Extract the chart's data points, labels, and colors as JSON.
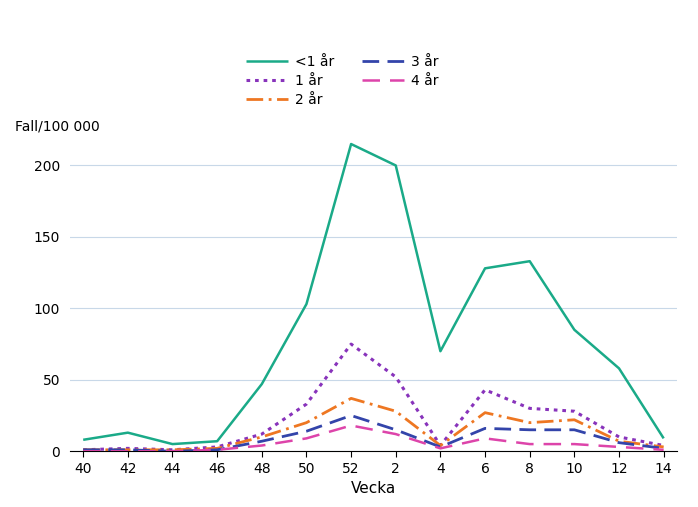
{
  "x_labels": [
    40,
    42,
    44,
    46,
    48,
    50,
    52,
    2,
    4,
    6,
    8,
    10,
    12,
    14
  ],
  "x_positions": [
    0,
    1,
    2,
    3,
    4,
    5,
    6,
    7,
    8,
    9,
    10,
    11,
    12,
    13
  ],
  "series": {
    "<1 år": {
      "values": [
        8,
        13,
        5,
        7,
        47,
        103,
        215,
        200,
        70,
        128,
        133,
        85,
        58,
        9
      ],
      "color": "#1aaa88",
      "linestyle": "solid",
      "linewidth": 1.8
    },
    "1 år": {
      "values": [
        1,
        2,
        1,
        3,
        12,
        33,
        75,
        52,
        4,
        43,
        30,
        28,
        10,
        4
      ],
      "color": "#8833bb",
      "linestyle": "dotted",
      "linewidth": 2.2
    },
    "2 år": {
      "values": [
        1,
        1,
        1,
        2,
        10,
        20,
        37,
        28,
        4,
        27,
        20,
        22,
        7,
        3
      ],
      "color": "#ee7722",
      "linestyle": "dashdot",
      "linewidth": 2.0
    },
    "3 år": {
      "values": [
        1,
        1,
        0,
        1,
        7,
        14,
        25,
        15,
        3,
        16,
        15,
        15,
        6,
        2
      ],
      "color": "#3344aa",
      "linestyle": "dashed",
      "linewidth": 2.0
    },
    "4 år": {
      "values": [
        0,
        0,
        0,
        1,
        4,
        9,
        18,
        12,
        2,
        9,
        5,
        5,
        3,
        1
      ],
      "color": "#dd44aa",
      "linestyle": "longdash",
      "linewidth": 1.8
    }
  },
  "ylabel": "Fall/100 000",
  "xlabel": "Vecka",
  "ylim": [
    0,
    220
  ],
  "yticks": [
    0,
    50,
    100,
    150,
    200
  ],
  "background_color": "#ffffff",
  "grid_color": "#c8d8e8",
  "legend_order": [
    "<1 år",
    "1 år",
    "2 år",
    "3 år",
    "4 år"
  ]
}
